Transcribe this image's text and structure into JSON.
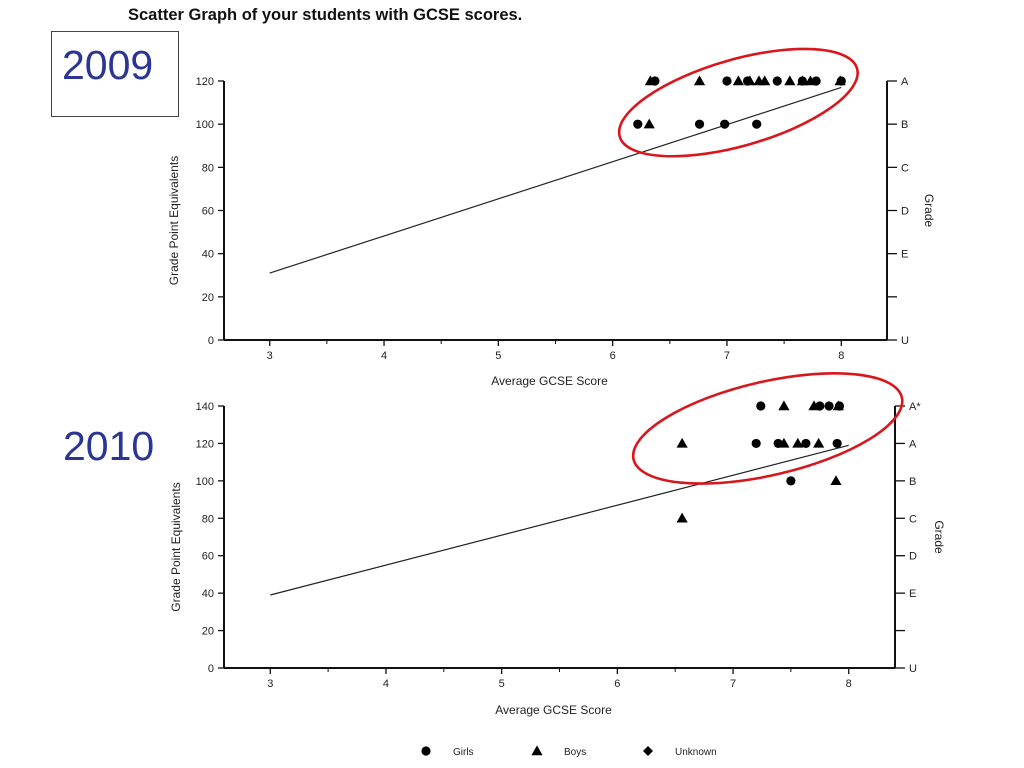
{
  "page": {
    "title": "Scatter Graph of your students with GCSE scores."
  },
  "colors": {
    "year_label": "#2b3593",
    "highlight_ellipse": "#d9161c",
    "axis": "#111111",
    "marker": "#000000"
  },
  "chart_data": [
    {
      "type": "scatter",
      "year_label": "2009",
      "title": "",
      "xlabel": "Average GCSE Score",
      "ylabel": "Grade Point Equivalents",
      "y2label": "Grade",
      "xlim": [
        2.6,
        8.4
      ],
      "ylim": [
        0,
        120
      ],
      "xticks": [
        3,
        4,
        5,
        6,
        7,
        8
      ],
      "yticks": [
        0,
        20,
        40,
        60,
        80,
        100,
        120
      ],
      "grade_ticks": [
        {
          "label": "A",
          "value": 120
        },
        {
          "label": "B",
          "value": 100
        },
        {
          "label": "C",
          "value": 80
        },
        {
          "label": "D",
          "value": 60
        },
        {
          "label": "E",
          "value": 40
        },
        {
          "label": "",
          "value": 20
        },
        {
          "label": "U",
          "value": 0
        }
      ],
      "trend_line": [
        [
          3,
          31
        ],
        [
          8,
          117
        ]
      ],
      "highlight": {
        "cx": 7.1,
        "cy": 110,
        "rx": 1.08,
        "ry": 20,
        "rotate": -16
      },
      "series": [
        {
          "name": "Girls",
          "marker": "circle",
          "points": [
            [
              6.22,
              100
            ],
            [
              6.37,
              120
            ],
            [
              6.76,
              100
            ],
            [
              6.98,
              100
            ],
            [
              7.0,
              120
            ],
            [
              7.18,
              120
            ],
            [
              7.26,
              100
            ],
            [
              7.44,
              120
            ],
            [
              7.66,
              120
            ],
            [
              7.78,
              120
            ],
            [
              8.0,
              120
            ]
          ]
        },
        {
          "name": "Boys",
          "marker": "triangle",
          "points": [
            [
              6.32,
              100
            ],
            [
              6.33,
              120
            ],
            [
              6.76,
              120
            ],
            [
              7.1,
              120
            ],
            [
              7.2,
              120
            ],
            [
              7.28,
              120
            ],
            [
              7.33,
              120
            ],
            [
              7.55,
              120
            ],
            [
              7.66,
              120
            ],
            [
              7.73,
              120
            ],
            [
              7.99,
              120
            ]
          ]
        }
      ]
    },
    {
      "type": "scatter",
      "year_label": "2010",
      "title": "",
      "xlabel": "Average GCSE Score",
      "ylabel": "Grade Point Equivalents",
      "y2label": "Grade",
      "xlim": [
        2.6,
        8.4
      ],
      "ylim": [
        0,
        140
      ],
      "xticks": [
        3,
        4,
        5,
        6,
        7,
        8
      ],
      "yticks": [
        0,
        20,
        40,
        60,
        80,
        100,
        120,
        140
      ],
      "grade_ticks": [
        {
          "label": "A*",
          "value": 140
        },
        {
          "label": "A",
          "value": 120
        },
        {
          "label": "B",
          "value": 100
        },
        {
          "label": "C",
          "value": 80
        },
        {
          "label": "D",
          "value": 60
        },
        {
          "label": "E",
          "value": 40
        },
        {
          "label": "",
          "value": 20
        },
        {
          "label": "U",
          "value": 0
        }
      ],
      "trend_line": [
        [
          3,
          39
        ],
        [
          8,
          119
        ]
      ],
      "highlight": {
        "cx": 7.3,
        "cy": 128,
        "rx": 1.19,
        "ry": 25,
        "rotate": -13
      },
      "series": [
        {
          "name": "Girls",
          "marker": "circle",
          "points": [
            [
              7.2,
              120
            ],
            [
              7.24,
              140
            ],
            [
              7.39,
              120
            ],
            [
              7.5,
              100
            ],
            [
              7.63,
              120
            ],
            [
              7.75,
              140
            ],
            [
              7.83,
              140
            ],
            [
              7.9,
              120
            ],
            [
              7.92,
              140
            ]
          ]
        },
        {
          "name": "Boys",
          "marker": "triangle",
          "points": [
            [
              6.56,
              80
            ],
            [
              6.56,
              120
            ],
            [
              7.44,
              120
            ],
            [
              7.44,
              140
            ],
            [
              7.56,
              120
            ],
            [
              7.7,
              140
            ],
            [
              7.74,
              120
            ],
            [
              7.89,
              100
            ],
            [
              7.91,
              140
            ]
          ]
        }
      ]
    }
  ],
  "legend": {
    "items": [
      {
        "label": "Girls",
        "marker": "circle"
      },
      {
        "label": "Boys",
        "marker": "triangle"
      },
      {
        "label": "Unknown",
        "marker": "diamond"
      }
    ]
  }
}
